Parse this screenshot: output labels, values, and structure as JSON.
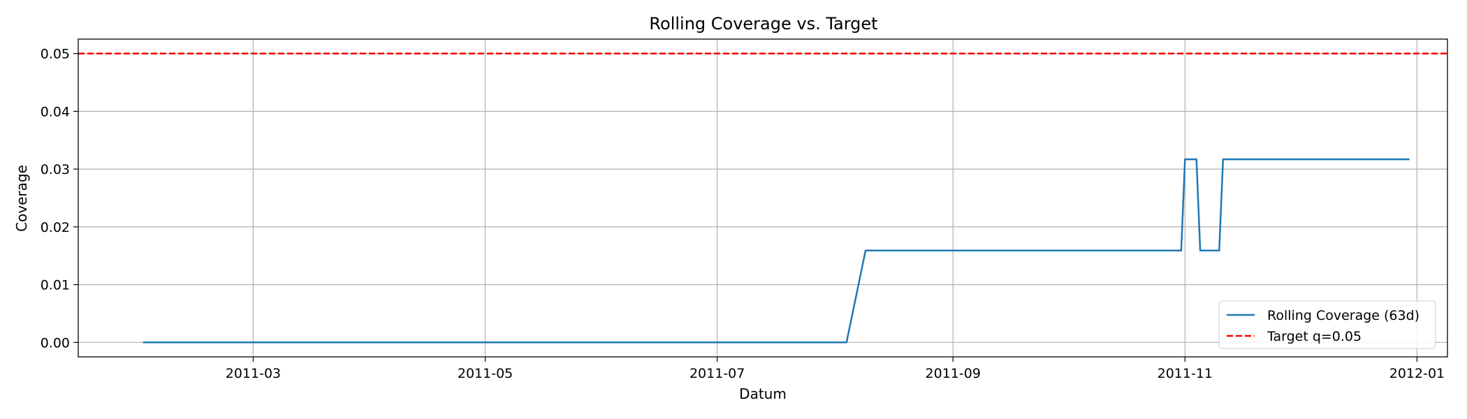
{
  "chart_data": {
    "type": "line",
    "title": "Rolling Coverage vs. Target",
    "xlabel": "Datum",
    "ylabel": "Coverage",
    "x_axis": "date",
    "xlim": [
      "2011-01-14",
      "2012-01-09"
    ],
    "ylim": [
      -0.0025,
      0.0525
    ],
    "grid": true,
    "legend_position": "lower-right",
    "x_ticks": [
      "2011-03",
      "2011-05",
      "2011-07",
      "2011-09",
      "2011-11",
      "2012-01"
    ],
    "y_ticks": [
      "0.00",
      "0.01",
      "0.02",
      "0.03",
      "0.04",
      "0.05"
    ],
    "series": [
      {
        "name": "Rolling Coverage (63d)",
        "style": "solid",
        "color": "#1f77b4",
        "points": [
          {
            "x": "2011-01-31",
            "y": 0.0
          },
          {
            "x": "2011-08-04",
            "y": 0.0
          },
          {
            "x": "2011-08-09",
            "y": 0.0159
          },
          {
            "x": "2011-10-31",
            "y": 0.0159
          },
          {
            "x": "2011-11-01",
            "y": 0.0317
          },
          {
            "x": "2011-11-04",
            "y": 0.0317
          },
          {
            "x": "2011-11-05",
            "y": 0.0159
          },
          {
            "x": "2011-11-10",
            "y": 0.0159
          },
          {
            "x": "2011-11-11",
            "y": 0.0317
          },
          {
            "x": "2011-12-30",
            "y": 0.0317
          }
        ]
      },
      {
        "name": "Target q=0.05",
        "style": "dashed",
        "color": "#ff0000",
        "hline": 0.05
      }
    ]
  }
}
